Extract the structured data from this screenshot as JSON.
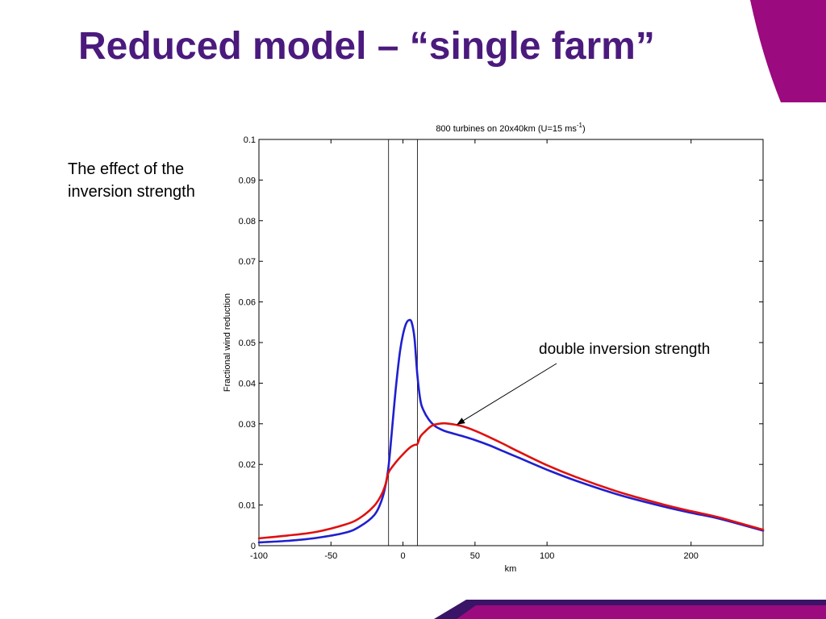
{
  "slide": {
    "title": "Reduced model – “single farm”",
    "side_note": [
      "The effect of the",
      "inversion strength"
    ],
    "accent_color": "#9b0a7e",
    "accent_dark": "#3a1466",
    "title_color": "#4b1a7d"
  },
  "chart_data": {
    "type": "line",
    "title_main": "800 turbines on 20x40km (U=15 ms",
    "title_sup": "-1",
    "title_end": ")",
    "xlabel": "km",
    "ylabel": "Fractional wind reduction",
    "xlim": [
      -100,
      250
    ],
    "ylim": [
      0,
      0.1
    ],
    "x_ticks": [
      -100,
      -50,
      0,
      50,
      100,
      200
    ],
    "x_tick_labels": [
      "-100",
      "-50",
      "0",
      "50",
      "100",
      "200"
    ],
    "y_ticks": [
      0,
      0.01,
      0.02,
      0.03,
      0.04,
      0.05,
      0.06,
      0.07,
      0.08,
      0.09,
      0.1
    ],
    "y_tick_labels": [
      "0",
      "0.01",
      "0.02",
      "0.03",
      "0.04",
      "0.05",
      "0.06",
      "0.07",
      "0.08",
      "0.09",
      "0.1"
    ],
    "farm_edges": [
      -10,
      10
    ],
    "grid": false,
    "series": [
      {
        "color": "#1f1fd0",
        "x": [
          -100,
          -80,
          -60,
          -40,
          -30,
          -20,
          -15,
          -12,
          -10,
          -8,
          -6,
          -4,
          -2,
          0,
          2,
          4,
          6,
          8,
          10,
          12,
          14,
          18,
          22,
          26,
          30,
          40,
          50,
          60,
          70,
          80,
          100,
          120,
          150,
          180,
          200,
          220,
          250
        ],
        "y": [
          0.0008,
          0.0012,
          0.0019,
          0.0032,
          0.0047,
          0.0075,
          0.011,
          0.015,
          0.0195,
          0.027,
          0.035,
          0.042,
          0.048,
          0.052,
          0.0545,
          0.0555,
          0.055,
          0.051,
          0.042,
          0.036,
          0.0335,
          0.031,
          0.0295,
          0.0287,
          0.0281,
          0.0271,
          0.026,
          0.0247,
          0.0232,
          0.0217,
          0.0187,
          0.016,
          0.0125,
          0.0097,
          0.0081,
          0.0066,
          0.0037
        ]
      },
      {
        "color": "#e01010",
        "x": [
          -100,
          -80,
          -60,
          -40,
          -30,
          -20,
          -15,
          -12,
          -10,
          -5,
          0,
          5,
          8,
          10,
          12,
          15,
          20,
          25,
          30,
          40,
          50,
          60,
          70,
          80,
          100,
          120,
          150,
          180,
          200,
          220,
          250
        ],
        "y": [
          0.0018,
          0.0025,
          0.0034,
          0.0052,
          0.0068,
          0.0098,
          0.0125,
          0.0152,
          0.018,
          0.0205,
          0.0225,
          0.0242,
          0.0248,
          0.025,
          0.0268,
          0.028,
          0.0295,
          0.03,
          0.0301,
          0.0295,
          0.0283,
          0.0267,
          0.025,
          0.0232,
          0.0198,
          0.0169,
          0.0132,
          0.0102,
          0.0085,
          0.0069,
          0.0039
        ]
      }
    ],
    "annotation": {
      "text": "double inversion strength",
      "arrow_to": [
        40,
        0.0295
      ]
    }
  }
}
